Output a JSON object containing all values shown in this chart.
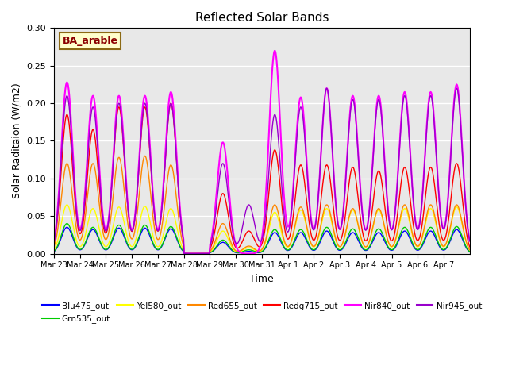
{
  "title": "Reflected Solar Bands",
  "xlabel": "Time",
  "ylabel": "Solar Raditaion (W/m2)",
  "ylim": [
    0,
    0.3
  ],
  "annotation": "BA_arable",
  "series": {
    "Blu475_out": {
      "color": "#0000ff",
      "lw": 1.0
    },
    "Grn535_out": {
      "color": "#00cc00",
      "lw": 1.0
    },
    "Yel580_out": {
      "color": "#ffff00",
      "lw": 1.0
    },
    "Red655_out": {
      "color": "#ff8800",
      "lw": 1.0
    },
    "Redg715_out": {
      "color": "#ff0000",
      "lw": 1.0
    },
    "Nir840_out": {
      "color": "#ff00ff",
      "lw": 1.5
    },
    "Nir945_out": {
      "color": "#9900cc",
      "lw": 1.0
    }
  },
  "xtick_labels": [
    "Mar 23",
    "Mar 24",
    "Mar 25",
    "Mar 26",
    "Mar 27",
    "Mar 28",
    "Mar 29",
    "Mar 30",
    "Mar 31",
    "Apr 1",
    "Apr 2",
    "Apr 3",
    "Apr 4",
    "Apr 5",
    "Apr 6",
    "Apr 7"
  ],
  "background_color": "#e8e8e8",
  "fig_background": "#ffffff",
  "nir840_peaks": [
    0.228,
    0.21,
    0.21,
    0.21,
    0.215,
    0.0,
    0.148,
    0.0,
    0.27,
    0.208,
    0.22,
    0.21,
    0.21,
    0.215,
    0.215,
    0.225
  ],
  "nir945_peaks": [
    0.21,
    0.195,
    0.2,
    0.2,
    0.2,
    0.0,
    0.12,
    0.065,
    0.185,
    0.195,
    0.22,
    0.205,
    0.205,
    0.21,
    0.21,
    0.22
  ],
  "redg715_peaks": [
    0.185,
    0.165,
    0.195,
    0.195,
    0.2,
    0.0,
    0.08,
    0.03,
    0.138,
    0.118,
    0.118,
    0.115,
    0.11,
    0.115,
    0.115,
    0.12
  ],
  "red655_peaks": [
    0.12,
    0.12,
    0.128,
    0.13,
    0.118,
    0.0,
    0.04,
    0.01,
    0.065,
    0.062,
    0.065,
    0.06,
    0.06,
    0.065,
    0.065,
    0.065
  ],
  "yel580_peaks": [
    0.065,
    0.06,
    0.062,
    0.063,
    0.06,
    0.0,
    0.03,
    0.008,
    0.055,
    0.058,
    0.06,
    0.058,
    0.058,
    0.06,
    0.06,
    0.062
  ],
  "grn535_peaks": [
    0.04,
    0.035,
    0.038,
    0.038,
    0.036,
    0.0,
    0.018,
    0.005,
    0.032,
    0.032,
    0.035,
    0.033,
    0.033,
    0.035,
    0.035,
    0.036
  ],
  "blu475_peaks": [
    0.035,
    0.032,
    0.034,
    0.034,
    0.033,
    0.0,
    0.015,
    0.003,
    0.028,
    0.028,
    0.03,
    0.028,
    0.028,
    0.03,
    0.03,
    0.032
  ],
  "yticks": [
    0.0,
    0.05,
    0.1,
    0.15,
    0.2,
    0.25,
    0.3
  ]
}
